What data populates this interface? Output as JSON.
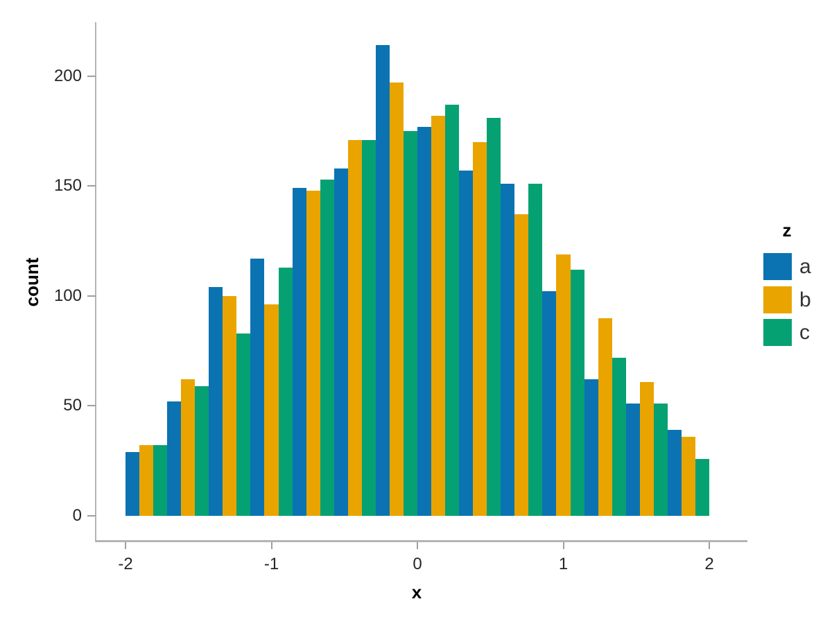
{
  "chart_data": {
    "type": "bar",
    "subtype": "grouped-histogram",
    "title": "",
    "xlabel": "x",
    "ylabel": "count",
    "grid": false,
    "background": "#ffffff",
    "legend": {
      "title": "z",
      "position": "right"
    },
    "xlim": [
      -2,
      2
    ],
    "ylim": [
      0,
      224
    ],
    "x_ticks": [
      -2,
      -1,
      0,
      1,
      2
    ],
    "y_ticks": [
      0,
      50,
      100,
      150,
      200
    ],
    "bin_edges": [
      -2,
      -1.71,
      -1.43,
      -1.14,
      -0.86,
      -0.57,
      -0.29,
      0,
      0.29,
      0.57,
      0.86,
      1.14,
      1.43,
      1.71,
      2
    ],
    "series": [
      {
        "name": "a",
        "color": "#0b73b1",
        "values": [
          29,
          52,
          104,
          117,
          149,
          158,
          214,
          177,
          157,
          151,
          102,
          62,
          51,
          39
        ]
      },
      {
        "name": "b",
        "color": "#e9a400",
        "values": [
          32,
          62,
          100,
          96,
          148,
          171,
          197,
          182,
          170,
          137,
          119,
          90,
          61,
          36
        ]
      },
      {
        "name": "c",
        "color": "#06a173",
        "values": [
          32,
          59,
          83,
          113,
          153,
          171,
          175,
          187,
          181,
          151,
          112,
          72,
          51,
          26
        ]
      }
    ],
    "axis_colors": {
      "domain": "#b4b4b4",
      "tick": "#9e9e9e",
      "tick_label": "#262626"
    }
  }
}
